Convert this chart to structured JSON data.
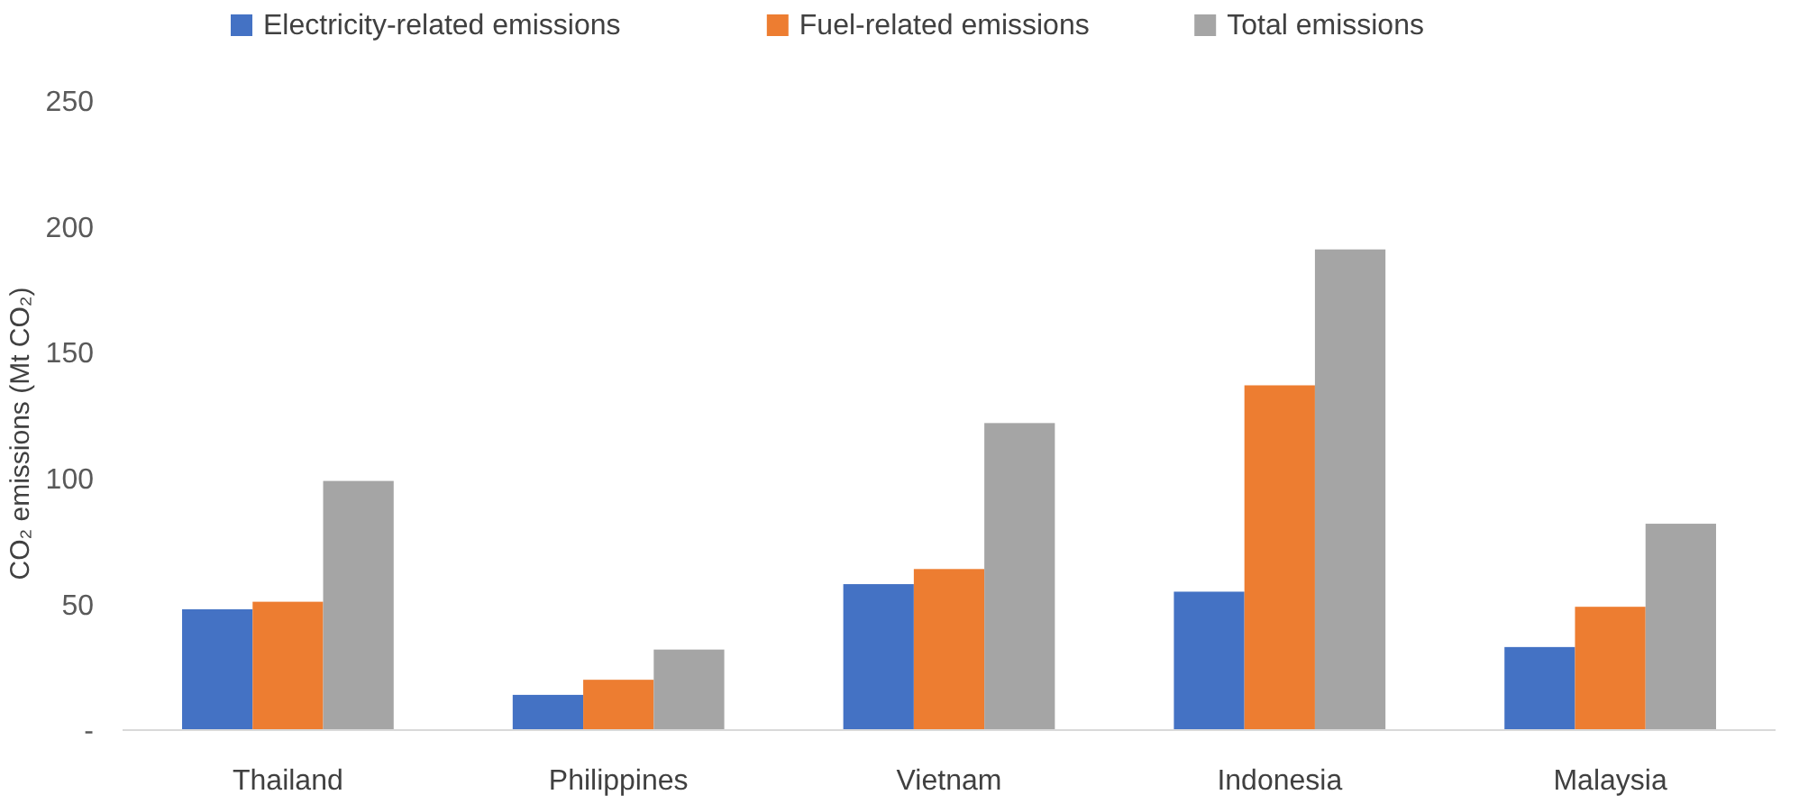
{
  "chart_data": {
    "type": "bar",
    "ylabel": "CO₂ emissions (Mt CO₂)",
    "categories": [
      "Thailand",
      "Philippines",
      "Vietnam",
      "Indonesia",
      "Malaysia"
    ],
    "series": [
      {
        "name": "Electricity-related emissions",
        "color": "#4472c4",
        "values": [
          48,
          14,
          58,
          55,
          33
        ]
      },
      {
        "name": "Fuel-related emissions",
        "color": "#ed7d31",
        "values": [
          51,
          20,
          64,
          137,
          49
        ]
      },
      {
        "name": "Total emissions",
        "color": "#a5a5a5",
        "values": [
          99,
          32,
          122,
          191,
          82
        ]
      }
    ],
    "ylim": [
      0,
      250
    ],
    "yticks": [
      {
        "value": 0,
        "label": "-"
      },
      50,
      100,
      150,
      200,
      250
    ],
    "grid": false,
    "legend": "top"
  }
}
